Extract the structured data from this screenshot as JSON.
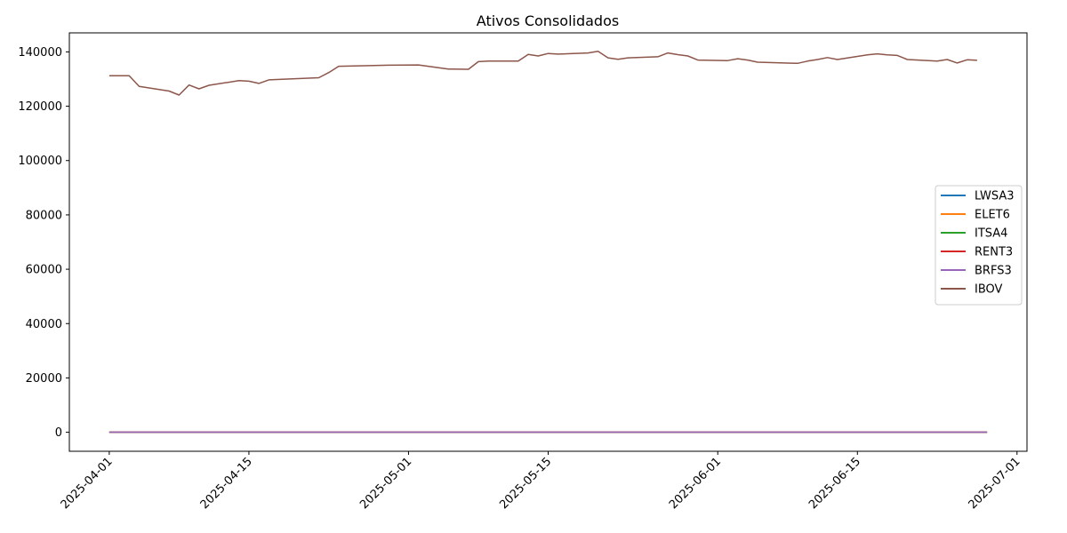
{
  "chart_data": {
    "type": "line",
    "title": "Ativos Consolidados",
    "xlabel": "",
    "ylabel": "",
    "x_range": [
      "2025-03-28",
      "2025-07-02"
    ],
    "ylim": [
      -7000,
      147000
    ],
    "x_ticks": [
      "2025-04-01",
      "2025-04-15",
      "2025-05-01",
      "2025-05-15",
      "2025-06-01",
      "2025-06-15",
      "2025-07-01"
    ],
    "y_ticks": [
      0,
      20000,
      40000,
      60000,
      80000,
      100000,
      120000,
      140000
    ],
    "grid": false,
    "legend_position": "center-right",
    "series": [
      {
        "name": "LWSA3",
        "color": "#1f77b4",
        "points": [
          [
            "2025-04-01",
            4
          ],
          [
            "2025-06-28",
            4
          ]
        ]
      },
      {
        "name": "ELET6",
        "color": "#ff7f0e",
        "points": [
          [
            "2025-04-01",
            45
          ],
          [
            "2025-06-28",
            45
          ]
        ]
      },
      {
        "name": "ITSA4",
        "color": "#2ca02c",
        "points": [
          [
            "2025-04-01",
            11
          ],
          [
            "2025-06-28",
            11
          ]
        ]
      },
      {
        "name": "RENT3",
        "color": "#d62728",
        "points": [
          [
            "2025-04-01",
            40
          ],
          [
            "2025-06-28",
            40
          ]
        ]
      },
      {
        "name": "BRFS3",
        "color": "#9467bd",
        "points": [
          [
            "2025-04-01",
            20
          ],
          [
            "2025-06-28",
            20
          ]
        ]
      },
      {
        "name": "IBOV",
        "color": "#8c564b",
        "points": [
          [
            "2025-04-01",
            131200
          ],
          [
            "2025-04-02",
            131250
          ],
          [
            "2025-04-03",
            131200
          ],
          [
            "2025-04-04",
            127300
          ],
          [
            "2025-04-07",
            125600
          ],
          [
            "2025-04-08",
            124100
          ],
          [
            "2025-04-09",
            127800
          ],
          [
            "2025-04-10",
            126400
          ],
          [
            "2025-04-11",
            127700
          ],
          [
            "2025-04-14",
            129400
          ],
          [
            "2025-04-15",
            129200
          ],
          [
            "2025-04-16",
            128400
          ],
          [
            "2025-04-17",
            129700
          ],
          [
            "2025-04-22",
            130500
          ],
          [
            "2025-04-23",
            132400
          ],
          [
            "2025-04-24",
            134700
          ],
          [
            "2025-04-29",
            135100
          ],
          [
            "2025-05-02",
            135200
          ],
          [
            "2025-05-05",
            133700
          ],
          [
            "2025-05-07",
            133600
          ],
          [
            "2025-05-08",
            136400
          ],
          [
            "2025-05-09",
            136600
          ],
          [
            "2025-05-12",
            136600
          ],
          [
            "2025-05-13",
            139100
          ],
          [
            "2025-05-14",
            138500
          ],
          [
            "2025-05-15",
            139400
          ],
          [
            "2025-05-16",
            139200
          ],
          [
            "2025-05-19",
            139600
          ],
          [
            "2025-05-20",
            140200
          ],
          [
            "2025-05-21",
            137800
          ],
          [
            "2025-05-22",
            137300
          ],
          [
            "2025-05-23",
            137800
          ],
          [
            "2025-05-26",
            138200
          ],
          [
            "2025-05-27",
            139600
          ],
          [
            "2025-05-28",
            139000
          ],
          [
            "2025-05-29",
            138500
          ],
          [
            "2025-05-30",
            137000
          ],
          [
            "2025-06-02",
            136800
          ],
          [
            "2025-06-03",
            137500
          ],
          [
            "2025-06-04",
            137000
          ],
          [
            "2025-06-05",
            136200
          ],
          [
            "2025-06-09",
            135800
          ],
          [
            "2025-06-10",
            136600
          ],
          [
            "2025-06-11",
            137200
          ],
          [
            "2025-06-12",
            137900
          ],
          [
            "2025-06-13",
            137200
          ],
          [
            "2025-06-16",
            138900
          ],
          [
            "2025-06-17",
            139300
          ],
          [
            "2025-06-18",
            138900
          ],
          [
            "2025-06-19",
            138700
          ],
          [
            "2025-06-20",
            137200
          ],
          [
            "2025-06-23",
            136600
          ],
          [
            "2025-06-24",
            137200
          ],
          [
            "2025-06-25",
            135900
          ],
          [
            "2025-06-26",
            137100
          ],
          [
            "2025-06-27",
            136900
          ]
        ]
      }
    ]
  }
}
